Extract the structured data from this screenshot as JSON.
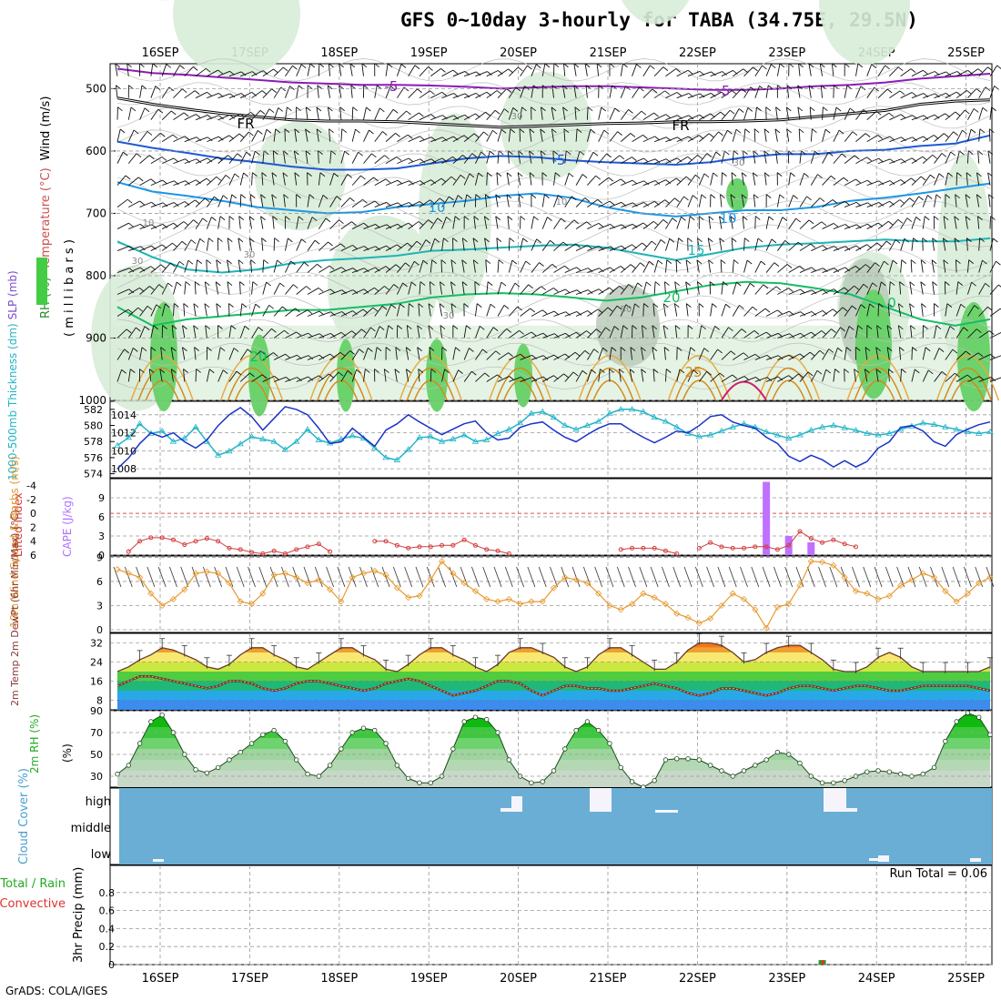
{
  "title": "GFS 0~10day 3-hourly for TABA (34.75E, 29.5N)",
  "footer": "GrADS: COLA/IGES",
  "date_labels": [
    "16SEP",
    "17SEP",
    "18SEP",
    "19SEP",
    "20SEP",
    "21SEP",
    "22SEP",
    "23SEP",
    "24SEP",
    "25SEP"
  ],
  "chart_data": [
    {
      "id": "upper-air",
      "type": "heatmap",
      "ylabel_parts": [
        "RH (%)",
        "Temperature (°C)",
        "Wind (m/s)"
      ],
      "yunits": "( m i l l i b a r s )",
      "yticks": [
        500,
        600,
        700,
        800,
        900,
        1000
      ],
      "ylim": [
        460,
        1000
      ],
      "contour_labels": [
        "-5",
        "FR",
        "-5",
        "FR",
        "-5",
        "10",
        "10",
        "15",
        "20",
        "25",
        "20",
        "30",
        "30",
        "10",
        "10",
        "30",
        "50",
        "30",
        "30",
        "0"
      ],
      "isotherms": [
        {
          "label": "-5",
          "color": "#8a1cb5",
          "p": [
            468,
            475,
            478,
            482,
            486,
            490,
            492,
            494,
            494,
            495,
            497,
            500,
            498,
            496,
            496,
            498,
            500,
            502,
            502,
            500,
            496,
            494,
            490,
            484,
            480,
            476
          ]
        },
        {
          "label": "FR",
          "color": "#000000",
          "p": [
            515,
            525,
            533,
            540,
            545,
            550,
            552,
            552,
            553,
            556,
            559,
            562,
            560,
            558,
            556,
            555,
            553,
            553,
            552,
            550,
            545,
            540,
            535,
            525,
            520,
            518
          ]
        },
        {
          "label": "-5",
          "color": "#1e5ad6",
          "p": [
            585,
            595,
            603,
            612,
            618,
            625,
            630,
            630,
            628,
            620,
            612,
            608,
            610,
            615,
            618,
            620,
            622,
            618,
            610,
            605,
            605,
            600,
            598,
            592,
            588,
            575
          ]
        },
        {
          "label": "10",
          "color": "#1e96e6",
          "p": [
            650,
            665,
            672,
            680,
            690,
            695,
            700,
            698,
            690,
            685,
            680,
            672,
            668,
            675,
            690,
            700,
            705,
            700,
            695,
            695,
            690,
            680,
            675,
            668,
            660,
            652
          ]
        },
        {
          "label": "15",
          "color": "#1eb4b4",
          "p": [
            745,
            770,
            790,
            795,
            790,
            780,
            775,
            772,
            768,
            760,
            758,
            755,
            752,
            750,
            755,
            765,
            775,
            765,
            755,
            750,
            748,
            745,
            742,
            745,
            745,
            740
          ]
        },
        {
          "label": "20",
          "color": "#14be64",
          "p": [
            850,
            880,
            870,
            865,
            860,
            855,
            855,
            850,
            845,
            835,
            830,
            828,
            830,
            835,
            840,
            835,
            825,
            815,
            810,
            812,
            820,
            830,
            850,
            870,
            880,
            870
          ]
        }
      ]
    },
    {
      "id": "slp-thickness",
      "type": "line",
      "ylabel_left": "1000-500mb Thickness (dm)",
      "ylabel_right": "SLP (mb)",
      "yticks_left": [
        574,
        576,
        578,
        580,
        582
      ],
      "yticks_right": [
        1008,
        1010,
        1012,
        1014
      ],
      "series": [
        {
          "key": "thickness",
          "color": "#22b4c8",
          "values": [
            577.5,
            578.5,
            580.2,
            579.0,
            579.3,
            578.0,
            578.4,
            579.8,
            578.0,
            576.3,
            576.8,
            577.7,
            578.6,
            578.3,
            578.0,
            577.0,
            578.0,
            579.5,
            578.2,
            577.8,
            578.3,
            578.7,
            578.4,
            577.2,
            576.0,
            575.7,
            577.0,
            578.5,
            578.6,
            578.0,
            578.3,
            578.8,
            578.0,
            578.2,
            579.0,
            579.5,
            580.3,
            581.5,
            581.7,
            581.0,
            580.0,
            579.5,
            580.0,
            580.5,
            581.5,
            582.0,
            582.0,
            581.7,
            581.0,
            580.5,
            579.8,
            579.0,
            578.6,
            578.8,
            579.3,
            579.8,
            580.2,
            579.8,
            579.2,
            578.8,
            578.4,
            578.8,
            579.4,
            579.8,
            580.0,
            579.7,
            579.4,
            579.0,
            578.8,
            579.0,
            579.5,
            579.9,
            580.3,
            580.1,
            579.8,
            579.5,
            579.2,
            579.0,
            579.2
          ]
        },
        {
          "key": "slp",
          "color": "#1a32c8",
          "values": [
            1008.0,
            1009.2,
            1010.8,
            1012.0,
            1011.5,
            1012.0,
            1011.0,
            1010.3,
            1011.2,
            1012.8,
            1014.0,
            1014.8,
            1013.8,
            1012.3,
            1013.6,
            1014.9,
            1014.6,
            1014.0,
            1012.5,
            1010.8,
            1011.0,
            1012.5,
            1011.5,
            1010.5,
            1012.3,
            1013.0,
            1014.0,
            1013.2,
            1012.5,
            1011.8,
            1012.4,
            1013.0,
            1013.3,
            1012.0,
            1011.2,
            1011.4,
            1012.6,
            1013.0,
            1013.2,
            1012.3,
            1011.5,
            1011.0,
            1011.8,
            1012.5,
            1013.0,
            1013.0,
            1012.2,
            1011.5,
            1010.9,
            1011.5,
            1012.2,
            1012.0,
            1012.8,
            1013.8,
            1014.0,
            1013.2,
            1012.8,
            1012.5,
            1011.5,
            1010.8,
            1009.4,
            1008.8,
            1009.5,
            1009.0,
            1008.2,
            1008.9,
            1008.2,
            1008.8,
            1010.3,
            1011.0,
            1012.6,
            1012.8,
            1012.2,
            1011.0,
            1010.5,
            1011.8,
            1012.4,
            1012.9,
            1013.2
          ]
        }
      ]
    },
    {
      "id": "cape-li",
      "type": "bar",
      "ylabel_left": "Lifted Index",
      "ylabel_right": "CAPE (J/kg)",
      "yticks_left": [
        "-4",
        "-2",
        "0",
        "2",
        "4",
        "6"
      ],
      "yticks_right": [
        "9",
        "6",
        "3",
        "0"
      ],
      "cape": [
        [
          58,
          11.5
        ],
        [
          60,
          3.0
        ],
        [
          62,
          2.0
        ]
      ],
      "lifted_index": [
        6,
        5.5,
        4,
        3.5,
        3.5,
        3.8,
        4.5,
        4,
        3.6,
        4,
        5,
        5.2,
        5.6,
        5.8,
        5.4,
        5.8,
        5.2,
        4.8,
        4.4,
        5.5,
        6,
        6,
        6,
        4,
        4,
        4.6,
        5,
        4.8,
        4.8,
        4.6,
        4.6,
        3.8,
        4.6,
        5.2,
        5.4,
        5.8,
        6,
        6,
        6,
        6,
        6,
        6,
        6,
        6,
        6,
        5.2,
        5,
        5,
        5,
        5.4,
        5.8,
        6,
        5,
        4.2,
        4.8,
        5,
        5,
        4.8,
        4.8,
        5.2,
        4.6,
        2.6,
        3.6,
        4.2,
        3.8,
        4.4,
        4.8,
        6,
        6,
        6,
        6,
        6,
        6,
        6,
        6,
        6,
        6,
        6,
        6
      ]
    },
    {
      "id": "wind-10m",
      "type": "line",
      "ylabel": "10m Wind Speed & Barbs (m/s)",
      "yticks": [
        0,
        3,
        6,
        9
      ],
      "ylim": [
        0,
        9
      ],
      "values": [
        7.5,
        7.0,
        6.5,
        4.5,
        3.0,
        3.8,
        5.0,
        7.0,
        7.2,
        7.0,
        5.8,
        3.5,
        3.2,
        4.5,
        6.8,
        7.0,
        6.5,
        5.8,
        6.2,
        5.0,
        3.5,
        6.5,
        7.0,
        7.3,
        6.8,
        5.2,
        4.0,
        4.2,
        6.2,
        8.5,
        7.0,
        5.8,
        4.8,
        3.8,
        3.5,
        3.8,
        3.2,
        3.5,
        3.5,
        5.2,
        6.5,
        6.2,
        5.8,
        4.5,
        3.0,
        2.5,
        3.2,
        4.5,
        4.0,
        3.2,
        2.0,
        1.5,
        0.8,
        1.4,
        3.0,
        4.5,
        3.8,
        2.5,
        0.2,
        2.8,
        3.2,
        5.5,
        8.5,
        8.4,
        8.0,
        6.5,
        4.8,
        4.5,
        3.8,
        4.2,
        5.5,
        6.2,
        7.0,
        6.5,
        4.8,
        3.5,
        4.5,
        5.8,
        6.5
      ]
    },
    {
      "id": "temp-2m",
      "type": "area",
      "ylabel": "2m Temp 2m DewPt (6hr Min/Max) (°C)",
      "yticks": [
        8,
        16,
        24,
        32
      ],
      "ylim": [
        4,
        36
      ],
      "temperature": [
        20,
        22,
        25,
        27,
        30,
        29,
        27,
        25,
        22,
        21,
        23,
        27,
        30,
        30,
        27,
        25,
        22,
        21,
        24,
        27,
        30,
        30,
        27,
        25,
        21,
        20,
        23,
        27,
        30,
        30,
        27,
        25,
        22,
        20,
        23,
        28,
        30,
        30,
        28,
        26,
        22,
        20,
        22,
        27,
        30,
        30,
        27,
        24,
        21,
        21,
        24,
        29,
        32,
        32,
        31,
        28,
        24,
        25,
        28,
        30,
        31,
        31,
        28,
        25,
        21,
        20,
        20,
        22,
        26,
        28,
        26,
        22,
        20,
        20,
        20,
        20,
        20,
        20,
        22
      ],
      "dewpoint": [
        14,
        16,
        18,
        18,
        17,
        16,
        15,
        14,
        13,
        14,
        16,
        16,
        15,
        13,
        12,
        13,
        15,
        16,
        16,
        15,
        14,
        13,
        12,
        13,
        15,
        16,
        17,
        16,
        14,
        12,
        10,
        11,
        12,
        14,
        16,
        16,
        15,
        12,
        10,
        12,
        14,
        14,
        13,
        13,
        12,
        12,
        13,
        14,
        15,
        14,
        13,
        11,
        10,
        11,
        13,
        13,
        12,
        11,
        10,
        11,
        13,
        14,
        14,
        13,
        12,
        13,
        14,
        14,
        13,
        12,
        12,
        13,
        14,
        14,
        14,
        14,
        14,
        13,
        12
      ]
    },
    {
      "id": "rh-2m",
      "type": "area",
      "ylabel": "2m RH (%)",
      "yticks": [
        30,
        50,
        70,
        90
      ],
      "ylim": [
        20,
        90
      ],
      "values": [
        32,
        40,
        60,
        80,
        86,
        70,
        50,
        36,
        33,
        38,
        45,
        52,
        60,
        68,
        72,
        62,
        45,
        32,
        30,
        40,
        55,
        70,
        74,
        72,
        60,
        40,
        28,
        24,
        24,
        30,
        55,
        80,
        84,
        82,
        70,
        45,
        30,
        24,
        25,
        35,
        55,
        72,
        80,
        72,
        60,
        38,
        25,
        20,
        26,
        45,
        46,
        46,
        45,
        40,
        35,
        30,
        35,
        40,
        45,
        52,
        50,
        42,
        30,
        24,
        24,
        26,
        30,
        34,
        35,
        34,
        32,
        30,
        32,
        38,
        62,
        80,
        88,
        84,
        68
      ]
    },
    {
      "id": "cloud-cover",
      "type": "bar",
      "ylabel": "Cloud Cover (%)",
      "levels": [
        "high",
        "middle",
        "low"
      ]
    },
    {
      "id": "precip",
      "type": "bar",
      "ylabel_parts": [
        "Total / Rain",
        "Convective"
      ],
      "ylabel_right": "3hr Precip (mm)",
      "yticks": [
        "0",
        "0.2",
        "0.4",
        "0.6",
        "0.8"
      ],
      "ylim": [
        0,
        1
      ],
      "run_total": "Run Total = 0.06",
      "values": [
        [
          63,
          0.05
        ]
      ]
    }
  ]
}
